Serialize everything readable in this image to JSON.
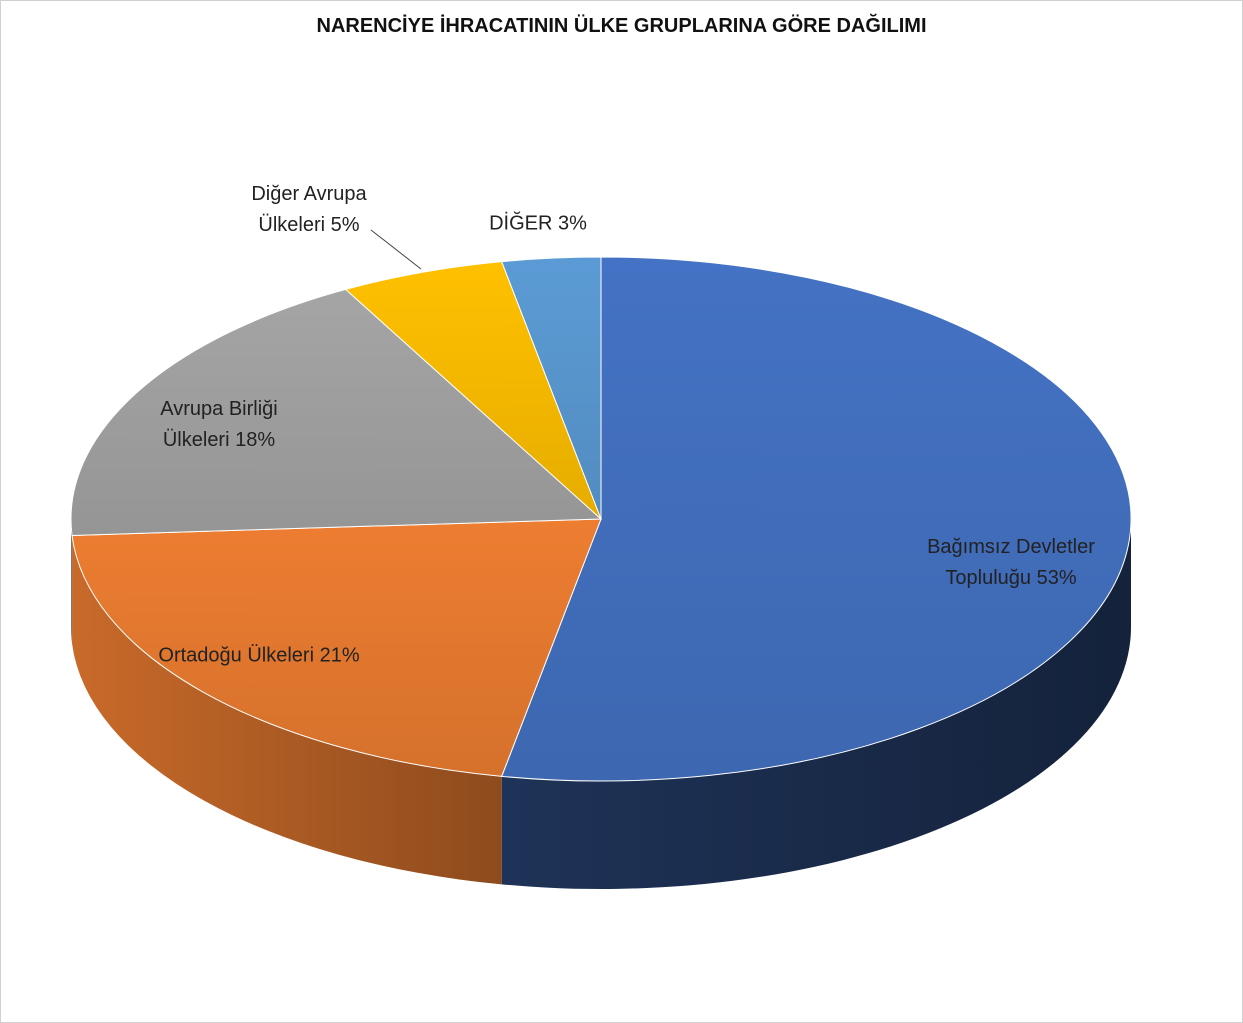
{
  "chart_data": {
    "type": "pie",
    "title": "NARENCİYE İHRACATININ ÜLKE GRUPLARINA GÖRE DAĞILIMI",
    "categories": [
      "Bağımsız Devletler Topluluğu",
      "Ortadoğu Ülkeleri",
      "Avrupa Birliği Ülkeleri",
      "Diğer Avrupa Ülkeleri",
      "DİĞER"
    ],
    "values": [
      53,
      21,
      18,
      5,
      3
    ],
    "value_labels": [
      "53%",
      "21%",
      "18%",
      "5%",
      "3%"
    ],
    "colors": [
      "#4472c4",
      "#ed7d31",
      "#a5a5a5",
      "#ffc000",
      "#5b9bd5"
    ]
  }
}
